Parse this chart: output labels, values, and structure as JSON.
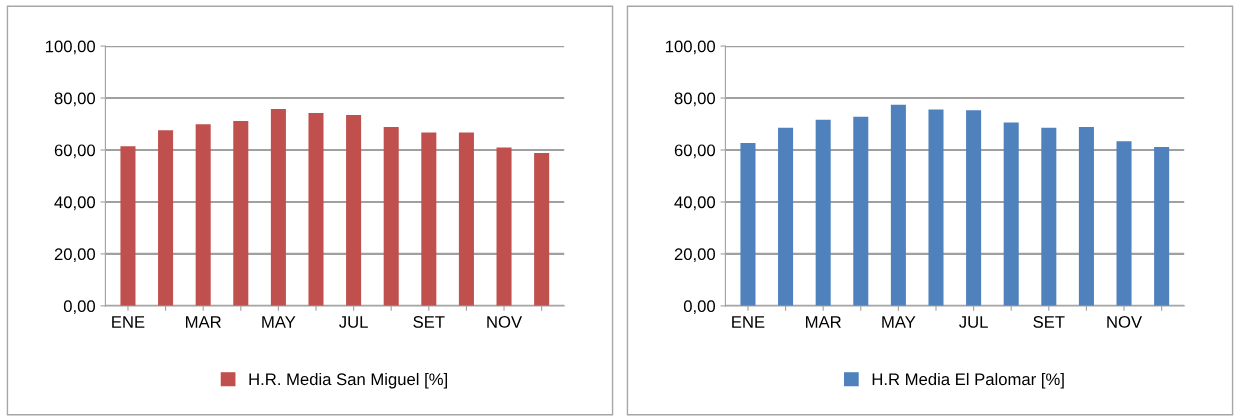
{
  "chart_data": [
    {
      "type": "bar",
      "categories": [
        "ENE",
        null,
        "MAR",
        null,
        "MAY",
        null,
        "JUL",
        null,
        "SET",
        null,
        "NOV",
        null
      ],
      "series": [
        {
          "name": "H.R. Media San Miguel [%]",
          "color": "#c0504d",
          "values": [
            61.4,
            67.6,
            69.9,
            71.2,
            75.8,
            74.2,
            73.5,
            68.9,
            66.7,
            66.7,
            61.0,
            58.8
          ]
        }
      ],
      "ylim": [
        0,
        100
      ],
      "yticks": [
        {
          "value": 0,
          "label": "0,00"
        },
        {
          "value": 20,
          "label": "20,00"
        },
        {
          "value": 40,
          "label": "40,00"
        },
        {
          "value": 60,
          "label": "60,00"
        },
        {
          "value": 80,
          "label": "80,00"
        },
        {
          "value": 100,
          "label": "100,00"
        }
      ],
      "grid": "y",
      "legend": "bottom"
    },
    {
      "type": "bar",
      "categories": [
        "ENE",
        null,
        "MAR",
        null,
        "MAY",
        null,
        "JUL",
        null,
        "SET",
        null,
        "NOV",
        null
      ],
      "series": [
        {
          "name": "H.R Media El Palomar [%]",
          "color": "#4f81bd",
          "values": [
            62.7,
            68.6,
            71.6,
            72.8,
            77.4,
            75.6,
            75.3,
            70.6,
            68.6,
            68.9,
            63.4,
            61.2
          ]
        }
      ],
      "ylim": [
        0,
        100
      ],
      "yticks": [
        {
          "value": 0,
          "label": "0,00"
        },
        {
          "value": 20,
          "label": "20,00"
        },
        {
          "value": 40,
          "label": "40,00"
        },
        {
          "value": 60,
          "label": "60,00"
        },
        {
          "value": 80,
          "label": "80,00"
        },
        {
          "value": 100,
          "label": "100,00"
        }
      ],
      "grid": "y",
      "legend": "bottom"
    }
  ]
}
